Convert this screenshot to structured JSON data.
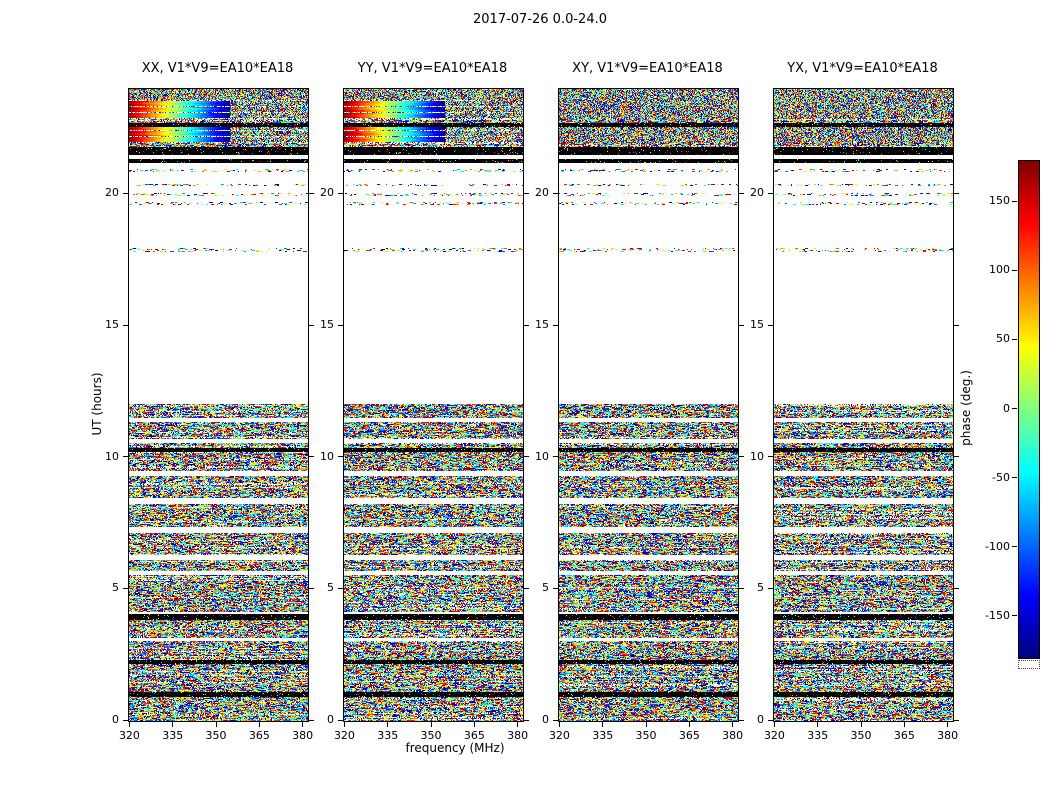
{
  "figure": {
    "title": "2017-07-26 0.0-24.0",
    "xlabel": "frequency (MHz)",
    "ylabel": "UT (hours)",
    "colorbar_label": "phase (deg.)"
  },
  "chart_data": {
    "type": "heatmap",
    "title": "2017-07-26 0.0-24.0",
    "xlabel": "frequency (MHz)",
    "ylabel": "UT (hours)",
    "x_range_mhz": [
      319.5,
      381.5
    ],
    "x_ticks": [
      320,
      335,
      350,
      365,
      380
    ],
    "y_range_hours": [
      0,
      24
    ],
    "y_ticks": [
      0,
      5,
      10,
      15,
      20
    ],
    "panels": [
      {
        "pol": "XX",
        "title": "XX, V1*V9=EA10*EA18"
      },
      {
        "pol": "YY",
        "title": "YY, V1*V9=EA10*EA18"
      },
      {
        "pol": "XY",
        "title": "XY, V1*V9=EA10*EA18"
      },
      {
        "pol": "YX",
        "title": "YX, V1*V9=EA10*EA18"
      }
    ],
    "colorbar": {
      "label": "phase (deg.)",
      "colormap": "jet",
      "range_deg": [
        -180,
        180
      ],
      "ticks": [
        150,
        100,
        50,
        0,
        -50,
        -100,
        -150
      ]
    },
    "gradient_panels": [
      "XX",
      "YY"
    ],
    "bands": [
      {
        "t0": 0.0,
        "t1": 0.9,
        "kind": "noise"
      },
      {
        "t0": 0.9,
        "t1": 1.1,
        "kind": "black"
      },
      {
        "t0": 1.1,
        "t1": 2.15,
        "kind": "noise"
      },
      {
        "t0": 2.15,
        "t1": 2.3,
        "kind": "black"
      },
      {
        "t0": 2.3,
        "t1": 3.05,
        "kind": "noise"
      },
      {
        "t0": 3.15,
        "t1": 3.85,
        "kind": "noise"
      },
      {
        "t0": 3.85,
        "t1": 4.05,
        "kind": "black"
      },
      {
        "t0": 4.15,
        "t1": 5.55,
        "kind": "noise"
      },
      {
        "t0": 5.7,
        "t1": 6.1,
        "kind": "noise"
      },
      {
        "t0": 6.3,
        "t1": 7.15,
        "kind": "noise"
      },
      {
        "t0": 7.35,
        "t1": 8.25,
        "kind": "noise"
      },
      {
        "t0": 8.45,
        "t1": 9.3,
        "kind": "noise"
      },
      {
        "t0": 9.5,
        "t1": 10.2,
        "kind": "noise"
      },
      {
        "t0": 10.2,
        "t1": 10.35,
        "kind": "black"
      },
      {
        "t0": 10.35,
        "t1": 10.55,
        "kind": "noise"
      },
      {
        "t0": 10.7,
        "t1": 11.35,
        "kind": "noise"
      },
      {
        "t0": 11.5,
        "t1": 12.05,
        "kind": "noise"
      },
      {
        "t0": 17.8,
        "t1": 17.95,
        "kind": "sparse"
      },
      {
        "t0": 19.6,
        "t1": 19.7,
        "kind": "sparse"
      },
      {
        "t0": 19.95,
        "t1": 20.05,
        "kind": "sparse"
      },
      {
        "t0": 20.3,
        "t1": 20.4,
        "kind": "sparse"
      },
      {
        "t0": 20.85,
        "t1": 20.95,
        "kind": "sparse"
      },
      {
        "t0": 21.2,
        "t1": 21.35,
        "kind": "black"
      },
      {
        "t0": 21.5,
        "t1": 21.8,
        "kind": "black"
      },
      {
        "t0": 21.8,
        "t1": 21.95,
        "kind": "noise"
      },
      {
        "t0": 21.95,
        "t1": 22.55,
        "kind": "gradient"
      },
      {
        "t0": 22.55,
        "t1": 22.7,
        "kind": "black"
      },
      {
        "t0": 22.7,
        "t1": 22.85,
        "kind": "noise"
      },
      {
        "t0": 22.85,
        "t1": 23.6,
        "kind": "gradient"
      },
      {
        "t0": 23.6,
        "t1": 24.0,
        "kind": "finenoise"
      }
    ]
  }
}
